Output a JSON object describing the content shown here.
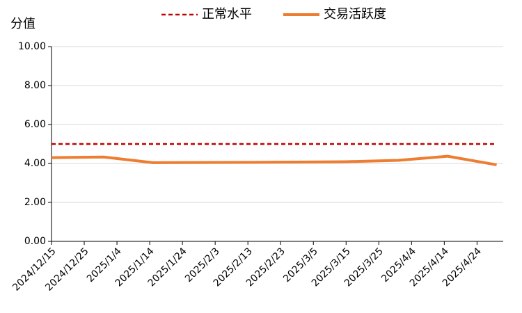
{
  "chart_data": {
    "type": "line",
    "y_label": "分值",
    "x": [
      "2024/12/15",
      "2024/12/31",
      "2025/1/15",
      "2025/1/31",
      "2025/2/15",
      "2025/2/28",
      "2025/3/15",
      "2025/3/31",
      "2025/4/15",
      "2025/4/30"
    ],
    "series": [
      {
        "name": "正常水平",
        "color": "#c00000",
        "dashed": true,
        "values": [
          5,
          5,
          5,
          5,
          5,
          5,
          5,
          5,
          5,
          5
        ]
      },
      {
        "name": "交易活跃度",
        "color": "#ed7d31",
        "dashed": false,
        "values": [
          4.3,
          4.33,
          4.04,
          4.05,
          4.06,
          4.07,
          4.09,
          4.16,
          4.37,
          3.93
        ]
      }
    ],
    "xlim": [
      "2024/12/15",
      "2025/5/2"
    ],
    "xticks": [
      "2024/12/15",
      "2024/12/25",
      "2025/1/4",
      "2025/1/14",
      "2025/1/24",
      "2025/2/3",
      "2025/2/13",
      "2025/2/23",
      "2025/3/5",
      "2025/3/15",
      "2025/3/25",
      "2025/4/4",
      "2025/4/14",
      "2025/4/24"
    ],
    "ylim": [
      0,
      10
    ],
    "yticks": [
      {
        "value": 0,
        "label": "0.00"
      },
      {
        "value": 2,
        "label": "2.00"
      },
      {
        "value": 4,
        "label": "4.00"
      },
      {
        "value": 6,
        "label": "6.00"
      },
      {
        "value": 8,
        "label": "8.00"
      },
      {
        "value": 10,
        "label": "10.00"
      }
    ],
    "grid": true
  }
}
